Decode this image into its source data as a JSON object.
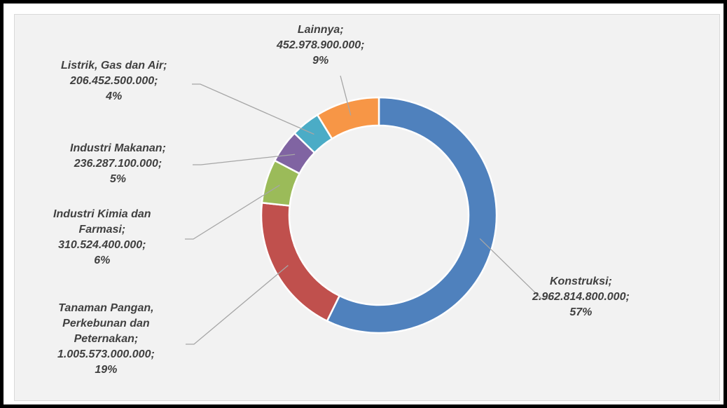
{
  "chart_data": {
    "type": "pie",
    "title": "",
    "legend": "none",
    "categories": [
      "Konstruksi",
      "Tanaman Pangan, Perkebunan dan Peternakan",
      "Industri Kimia dan Farmasi",
      "Industri Makanan",
      "Listrik, Gas dan Air",
      "Lainnya"
    ],
    "values": [
      2962814800000,
      1005573000000,
      310524400000,
      236287100000,
      206452500000,
      452978900000
    ],
    "slices": [
      {
        "name": "Konstruksi",
        "name_lines": [
          "Konstruksi;"
        ],
        "value_text": "2.962.814.800.000;",
        "percent_text": "57%",
        "color": "#4f81bd"
      },
      {
        "name": "Tanaman Pangan, Perkebunan dan Peternakan",
        "name_lines": [
          "Tanaman Pangan,",
          "Perkebunan dan",
          "Peternakan;"
        ],
        "value_text": "1.005.573.000.000;",
        "percent_text": "19%",
        "color": "#c0504d"
      },
      {
        "name": "Industri Kimia dan Farmasi",
        "name_lines": [
          "Industri Kimia dan",
          "Farmasi;"
        ],
        "value_text": "310.524.400.000;",
        "percent_text": "6%",
        "color": "#9bbb59"
      },
      {
        "name": "Industri Makanan",
        "name_lines": [
          "Industri Makanan;"
        ],
        "value_text": "236.287.100.000;",
        "percent_text": "5%",
        "color": "#8064a2"
      },
      {
        "name": "Listrik, Gas dan Air",
        "name_lines": [
          "Listrik, Gas dan Air;"
        ],
        "value_text": "206.452.500.000;",
        "percent_text": "4%",
        "color": "#4bacc6"
      },
      {
        "name": "Lainnya",
        "name_lines": [
          "Lainnya;"
        ],
        "value_text": "452.978.900.000;",
        "percent_text": "9%",
        "color": "#f79646"
      }
    ]
  }
}
